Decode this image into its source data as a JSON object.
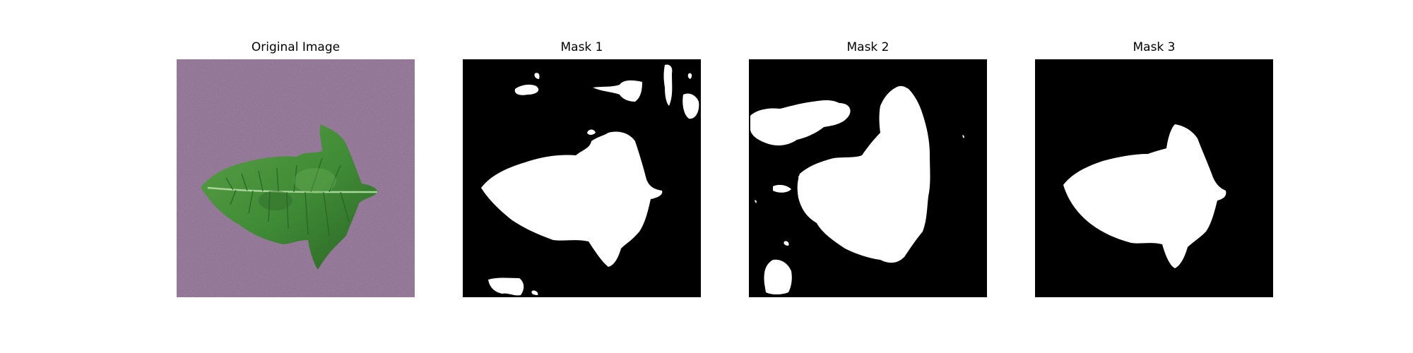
{
  "panels": [
    {
      "title": "Original Image"
    },
    {
      "title": "Mask 1"
    },
    {
      "title": "Mask 2"
    },
    {
      "title": "Mask 3"
    }
  ],
  "colors": {
    "background": "#ffffff",
    "mask_background": "#000000",
    "mask_foreground": "#ffffff",
    "photo_backdrop": "#8a6a8e",
    "leaf_green": "#3f8a36",
    "leaf_dark": "#25591f",
    "leaf_vein": "#a9d79a"
  }
}
